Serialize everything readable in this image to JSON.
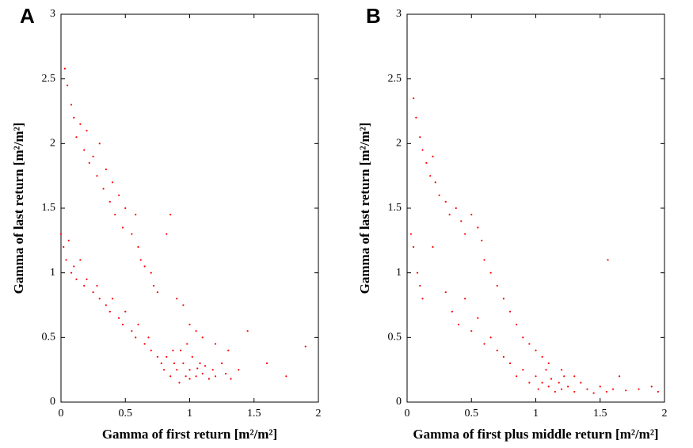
{
  "chart_data": [
    {
      "type": "scatter",
      "panel_label": "A",
      "xlabel": "Gamma of first return [m²/m²]",
      "ylabel": "Gamma of last return [m²/m²]",
      "color": "#ff0000",
      "xlim": [
        0,
        2
      ],
      "ylim": [
        0,
        3
      ],
      "xticks": [
        0,
        0.5,
        1,
        1.5,
        2
      ],
      "yticks": [
        0,
        0.5,
        1,
        1.5,
        2,
        2.5,
        3
      ],
      "x": [
        0.03,
        0.05,
        0.08,
        0.1,
        0.12,
        0.15,
        0.18,
        0.2,
        0.22,
        0.25,
        0.28,
        0.3,
        0.33,
        0.35,
        0.38,
        0.4,
        0.42,
        0.45,
        0.48,
        0.5,
        0.55,
        0.58,
        0.6,
        0.62,
        0.65,
        0.7,
        0.72,
        0.75,
        0.82,
        0.85,
        0.9,
        0.95,
        1.0,
        1.05,
        1.1,
        1.2,
        1.3,
        1.45,
        1.6,
        1.75,
        1.9,
        0.0,
        0.02,
        0.04,
        0.06,
        0.08,
        0.1,
        0.12,
        0.15,
        0.18,
        0.2,
        0.25,
        0.28,
        0.3,
        0.35,
        0.38,
        0.4,
        0.45,
        0.48,
        0.5,
        0.55,
        0.58,
        0.6,
        0.65,
        0.68,
        0.7,
        0.75,
        0.78,
        0.8,
        0.82,
        0.85,
        0.88,
        0.9,
        0.92,
        0.95,
        0.97,
        1.0,
        1.02,
        1.05,
        1.08,
        1.1,
        1.12,
        1.15,
        1.18,
        1.2,
        1.25,
        1.28,
        1.32,
        1.38,
        0.93,
        0.98,
        1.0,
        0.87,
        1.06
      ],
      "y": [
        2.58,
        2.45,
        2.3,
        2.2,
        2.05,
        2.15,
        1.95,
        2.1,
        1.85,
        1.9,
        1.75,
        2.0,
        1.65,
        1.8,
        1.55,
        1.7,
        1.45,
        1.6,
        1.35,
        1.5,
        1.3,
        1.45,
        1.2,
        1.1,
        1.05,
        1.0,
        0.9,
        0.85,
        1.3,
        1.45,
        0.8,
        0.75,
        0.6,
        0.55,
        0.5,
        0.45,
        0.4,
        0.55,
        0.3,
        0.2,
        0.43,
        1.3,
        1.2,
        1.1,
        1.25,
        1.0,
        1.05,
        0.95,
        1.1,
        0.9,
        0.95,
        0.85,
        0.9,
        0.8,
        0.75,
        0.7,
        0.8,
        0.65,
        0.6,
        0.7,
        0.55,
        0.5,
        0.6,
        0.45,
        0.5,
        0.4,
        0.35,
        0.3,
        0.25,
        0.35,
        0.2,
        0.3,
        0.25,
        0.15,
        0.3,
        0.2,
        0.25,
        0.35,
        0.2,
        0.3,
        0.22,
        0.28,
        0.18,
        0.25,
        0.2,
        0.3,
        0.22,
        0.18,
        0.25,
        0.4,
        0.45,
        0.18,
        0.4,
        0.26
      ]
    },
    {
      "type": "scatter",
      "panel_label": "B",
      "xlabel": "Gamma of first plus middle return [m²/m²]",
      "ylabel": "Gamma of last return [m²/m²]",
      "color": "#ff0000",
      "xlim": [
        0,
        2
      ],
      "ylim": [
        0,
        3
      ],
      "xticks": [
        0,
        0.5,
        1,
        1.5,
        2
      ],
      "yticks": [
        0,
        0.5,
        1,
        1.5,
        2,
        2.5,
        3
      ],
      "x": [
        0.05,
        0.07,
        0.1,
        0.12,
        0.15,
        0.18,
        0.2,
        0.22,
        0.25,
        0.3,
        0.33,
        0.38,
        0.42,
        0.45,
        0.5,
        0.55,
        0.58,
        0.6,
        0.65,
        0.7,
        0.75,
        0.8,
        0.85,
        0.9,
        0.95,
        1.0,
        1.05,
        1.1,
        1.2,
        1.3,
        1.56,
        1.65,
        1.9,
        1.95,
        0.03,
        0.05,
        0.08,
        0.1,
        0.12,
        0.2,
        0.3,
        0.35,
        0.4,
        0.45,
        0.5,
        0.55,
        0.6,
        0.65,
        0.7,
        0.75,
        0.8,
        0.85,
        0.9,
        0.95,
        1.0,
        1.02,
        1.05,
        1.08,
        1.1,
        1.12,
        1.15,
        1.18,
        1.2,
        1.22,
        1.25,
        1.3,
        1.35,
        1.4,
        1.45,
        1.5,
        1.55,
        1.6,
        1.7,
        1.8
      ],
      "y": [
        2.35,
        2.2,
        2.05,
        1.95,
        1.85,
        1.75,
        1.9,
        1.7,
        1.6,
        1.55,
        1.45,
        1.5,
        1.4,
        1.3,
        1.45,
        1.35,
        1.25,
        1.1,
        1.0,
        0.9,
        0.8,
        0.7,
        0.6,
        0.5,
        0.45,
        0.4,
        0.35,
        0.3,
        0.25,
        0.2,
        1.1,
        0.2,
        0.12,
        0.08,
        1.3,
        1.2,
        1.0,
        0.9,
        0.8,
        1.2,
        0.85,
        0.7,
        0.6,
        0.8,
        0.55,
        0.65,
        0.45,
        0.5,
        0.4,
        0.35,
        0.3,
        0.2,
        0.25,
        0.15,
        0.2,
        0.1,
        0.15,
        0.25,
        0.12,
        0.18,
        0.08,
        0.15,
        0.1,
        0.2,
        0.12,
        0.08,
        0.15,
        0.1,
        0.07,
        0.12,
        0.08,
        0.1,
        0.09,
        0.1
      ]
    }
  ]
}
